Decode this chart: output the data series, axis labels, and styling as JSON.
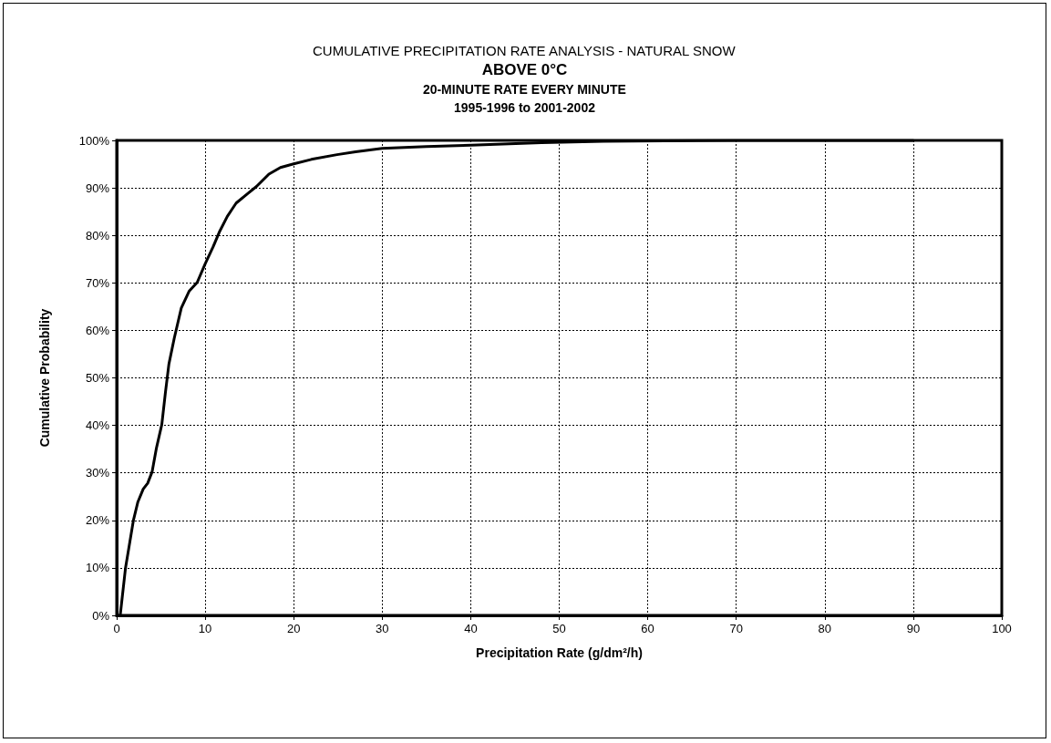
{
  "chart_data": {
    "type": "line",
    "title": "CUMULATIVE PRECIPITATION RATE ANALYSIS - NATURAL SNOW",
    "subtitle": "ABOVE 0°C",
    "annotations": [
      "20-MINUTE RATE EVERY MINUTE",
      "1995-1996 to 2001-2002"
    ],
    "xlabel": "Precipitation Rate (g/dm²/h)",
    "ylabel": "Cumulative Probability",
    "xlim": [
      0,
      100
    ],
    "xticks": [
      0,
      10,
      20,
      30,
      40,
      50,
      60,
      70,
      80,
      90,
      100
    ],
    "ylim": [
      0,
      100
    ],
    "yticks": [
      {
        "value": 0,
        "label": "0%"
      },
      {
        "value": 10,
        "label": "10%"
      },
      {
        "value": 20,
        "label": "20%"
      },
      {
        "value": 30,
        "label": "30%"
      },
      {
        "value": 40,
        "label": "40%"
      },
      {
        "value": 50,
        "label": "50%"
      },
      {
        "value": 60,
        "label": "60%"
      },
      {
        "value": 70,
        "label": "70%"
      },
      {
        "value": 80,
        "label": "80%"
      },
      {
        "value": 90,
        "label": "90%"
      },
      {
        "value": 100,
        "label": "100%"
      }
    ],
    "grid": true,
    "marker": "none",
    "line_style": "solid",
    "series": [
      {
        "color": "#000000",
        "x": [
          0.4,
          1.0,
          1.9,
          2.4,
          3.0,
          3.5,
          4.0,
          4.5,
          5.1,
          5.5,
          5.9,
          6.5,
          7.3,
          8.2,
          9.1,
          10.0,
          10.9,
          11.6,
          12.5,
          13.5,
          14.8,
          15.8,
          17.2,
          18.5,
          19.9,
          22,
          24.9,
          27,
          30,
          35,
          40,
          48,
          55,
          70,
          90
        ],
        "values": [
          0,
          10,
          20.1,
          23.9,
          26.6,
          27.8,
          30.2,
          35.3,
          40.2,
          46.8,
          52.9,
          58.3,
          64.7,
          68.3,
          70.1,
          74,
          77.6,
          80.7,
          84,
          86.8,
          88.8,
          90.3,
          92.9,
          94.3,
          95,
          96,
          97,
          97.6,
          98.3,
          98.7,
          99,
          99.5,
          99.8,
          100,
          100
        ]
      }
    ]
  }
}
